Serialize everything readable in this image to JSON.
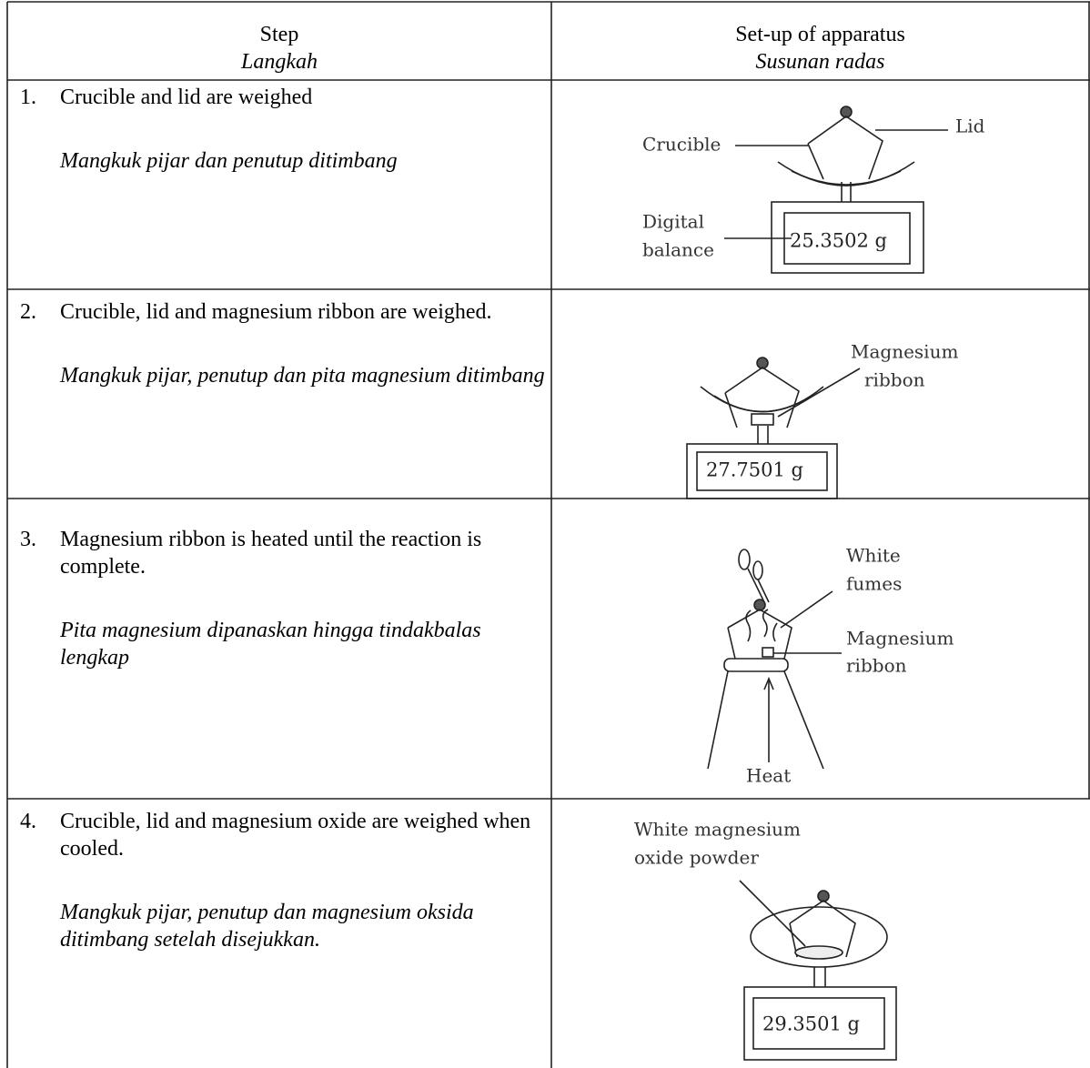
{
  "table": {
    "headers": [
      {
        "en": "Step",
        "ms": "Langkah"
      },
      {
        "en": "Set-up of apparatus",
        "ms": "Susunan radas"
      }
    ],
    "rows": [
      {
        "number": "1.",
        "en": "Crucible and lid are weighed",
        "ms": "Mangkuk pijar dan penutup ditimbang",
        "diagram": {
          "labels": [
            "Crucible",
            "Lid",
            "Digital",
            "balance"
          ],
          "reading": "25.3502 g"
        }
      },
      {
        "number": "2.",
        "en": "Crucible, lid and magnesium ribbon are weighed.",
        "ms": "Mangkuk pijar, penutup dan pita magnesium ditimbang",
        "diagram": {
          "labels": [
            "Magnesium",
            "ribbon"
          ],
          "reading": "27.7501 g"
        }
      },
      {
        "number": "3.",
        "en": "Magnesium ribbon is heated until the reaction is complete.",
        "ms": "Pita magnesium dipanaskan hingga tindakbalas lengkap",
        "diagram": {
          "labels": [
            "White",
            "fumes",
            "Magnesium",
            "ribbon",
            "Heat"
          ]
        }
      },
      {
        "number": "4.",
        "en": "Crucible, lid and magnesium oxide are weighed when cooled.",
        "ms": "Mangkuk pijar, penutup dan magnesium oksida ditimbang setelah disejukkan.",
        "diagram": {
          "labels": [
            "White magnesium",
            "oxide powder"
          ],
          "reading": "29.3501 g"
        }
      }
    ]
  }
}
